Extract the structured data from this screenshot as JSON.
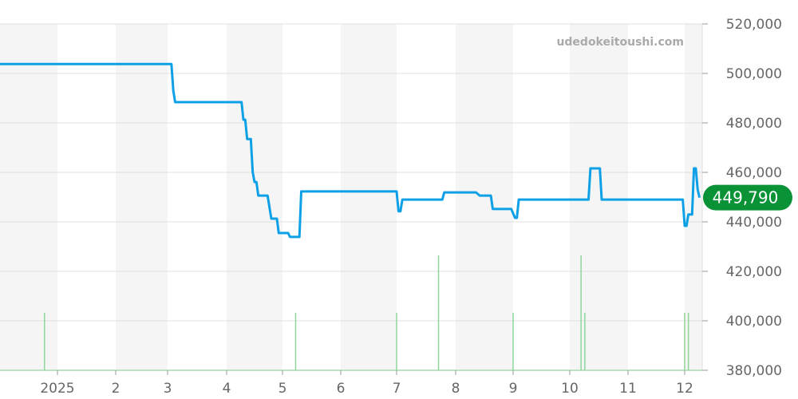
{
  "watermark": "udedokeitoushi.com",
  "chart_data": {
    "type": "line",
    "title": "",
    "xlabel": "",
    "ylabel": "",
    "ylim": [
      380000,
      520000
    ],
    "yticks": [
      "380,000",
      "400,000",
      "420,000",
      "440,000",
      "460,000",
      "480,000",
      "500,000",
      "520,000"
    ],
    "ytick_values": [
      380000,
      400000,
      420000,
      440000,
      460000,
      480000,
      500000,
      520000
    ],
    "xticks": [
      {
        "label": "2025",
        "date": "2025-01-01"
      },
      {
        "label": "2",
        "date": "2025-02-01"
      },
      {
        "label": "3",
        "date": "2025-03-01"
      },
      {
        "label": "4",
        "date": "2025-04-01"
      },
      {
        "label": "5",
        "date": "2025-05-01"
      },
      {
        "label": "6",
        "date": "2025-06-01"
      },
      {
        "label": "7",
        "date": "2025-07-01"
      },
      {
        "label": "8",
        "date": "2025-08-01"
      },
      {
        "label": "9",
        "date": "2025-09-01"
      },
      {
        "label": "10",
        "date": "2025-10-01"
      },
      {
        "label": "11",
        "date": "2025-11-01"
      },
      {
        "label": "12",
        "date": "2025-12-01"
      }
    ],
    "xlim": [
      "2024-12-01",
      "2025-12-09"
    ],
    "grid": true,
    "alternating_month_shading": true,
    "current_value": 449790,
    "current_value_label": "449,790",
    "colors": {
      "line": "#0ea0e6",
      "volume": "#8fd69a",
      "badge": "#0a9237",
      "shade": "#f5f5f5",
      "grid": "#e0e0e0"
    },
    "series": [
      {
        "values": [
          [
            "2024-12-01",
            503800
          ],
          [
            "2025-03-03",
            503800
          ],
          [
            "2025-03-04",
            493000
          ],
          [
            "2025-03-05",
            488400
          ],
          [
            "2025-04-09",
            488400
          ],
          [
            "2025-04-10",
            481300
          ],
          [
            "2025-04-11",
            481300
          ],
          [
            "2025-04-12",
            473500
          ],
          [
            "2025-04-14",
            473500
          ],
          [
            "2025-04-15",
            460000
          ],
          [
            "2025-04-16",
            456100
          ],
          [
            "2025-04-17",
            456100
          ],
          [
            "2025-04-18",
            450600
          ],
          [
            "2025-04-23",
            450600
          ],
          [
            "2025-04-25",
            441300
          ],
          [
            "2025-04-28",
            441300
          ],
          [
            "2025-04-29",
            435500
          ],
          [
            "2025-05-04",
            435500
          ],
          [
            "2025-05-05",
            433900
          ],
          [
            "2025-05-10",
            433900
          ],
          [
            "2025-05-11",
            452300
          ],
          [
            "2025-07-01",
            452300
          ],
          [
            "2025-07-02",
            444300
          ],
          [
            "2025-07-03",
            444300
          ],
          [
            "2025-07-04",
            449000
          ],
          [
            "2025-07-25",
            449000
          ],
          [
            "2025-07-26",
            451900
          ],
          [
            "2025-08-12",
            451900
          ],
          [
            "2025-08-14",
            450600
          ],
          [
            "2025-08-20",
            450600
          ],
          [
            "2025-08-21",
            445200
          ],
          [
            "2025-08-31",
            445200
          ],
          [
            "2025-09-02",
            441600
          ],
          [
            "2025-09-03",
            441600
          ],
          [
            "2025-09-04",
            449000
          ],
          [
            "2025-10-11",
            449000
          ],
          [
            "2025-10-12",
            461600
          ],
          [
            "2025-10-17",
            461600
          ],
          [
            "2025-10-18",
            449000
          ],
          [
            "2025-11-30",
            449000
          ],
          [
            "2025-12-01",
            438400
          ],
          [
            "2025-12-02",
            438400
          ],
          [
            "2025-12-03",
            443000
          ],
          [
            "2025-12-05",
            443000
          ],
          [
            "2025-12-06",
            461600
          ],
          [
            "2025-12-07",
            461600
          ],
          [
            "2025-12-08",
            453000
          ],
          [
            "2025-12-09",
            449790
          ]
        ]
      }
    ],
    "volume": [
      [
        "2024-12-25",
        1
      ],
      [
        "2025-05-08",
        1
      ],
      [
        "2025-07-01",
        1
      ],
      [
        "2025-07-23",
        2
      ],
      [
        "2025-09-01",
        1
      ],
      [
        "2025-10-07",
        2
      ],
      [
        "2025-10-09",
        1
      ],
      [
        "2025-12-01",
        1
      ],
      [
        "2025-12-03",
        1
      ]
    ]
  }
}
